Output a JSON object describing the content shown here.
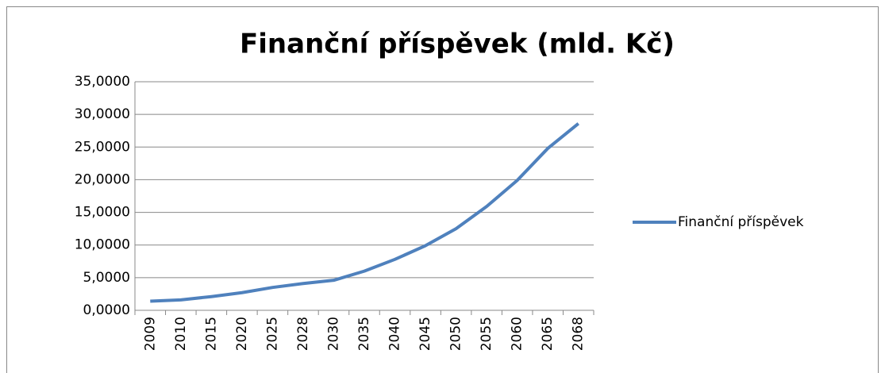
{
  "chart_data": {
    "type": "line",
    "title": "Finanční příspěvek (mld. Kč)",
    "categories": [
      "2009",
      "2010",
      "2015",
      "2020",
      "2025",
      "2028",
      "2030",
      "2035",
      "2040",
      "2045",
      "2050",
      "2055",
      "2060",
      "2065",
      "2068"
    ],
    "series": [
      {
        "name": "Finanční příspěvek",
        "color": "#4f81bd",
        "values": [
          1.4,
          1.6,
          2.1,
          2.7,
          3.5,
          4.1,
          4.6,
          6.0,
          7.8,
          9.9,
          12.5,
          15.9,
          19.9,
          24.8,
          28.6
        ]
      }
    ],
    "ylim": [
      0,
      35
    ],
    "yticks": [
      {
        "value": 0,
        "label": "0,0000"
      },
      {
        "value": 5,
        "label": "5,0000"
      },
      {
        "value": 10,
        "label": "10,0000"
      },
      {
        "value": 15,
        "label": "15,0000"
      },
      {
        "value": 20,
        "label": "20,0000"
      },
      {
        "value": 25,
        "label": "25,0000"
      },
      {
        "value": 30,
        "label": "30,0000"
      },
      {
        "value": 35,
        "label": "35,0000"
      }
    ],
    "grid": true,
    "legend": "right"
  }
}
